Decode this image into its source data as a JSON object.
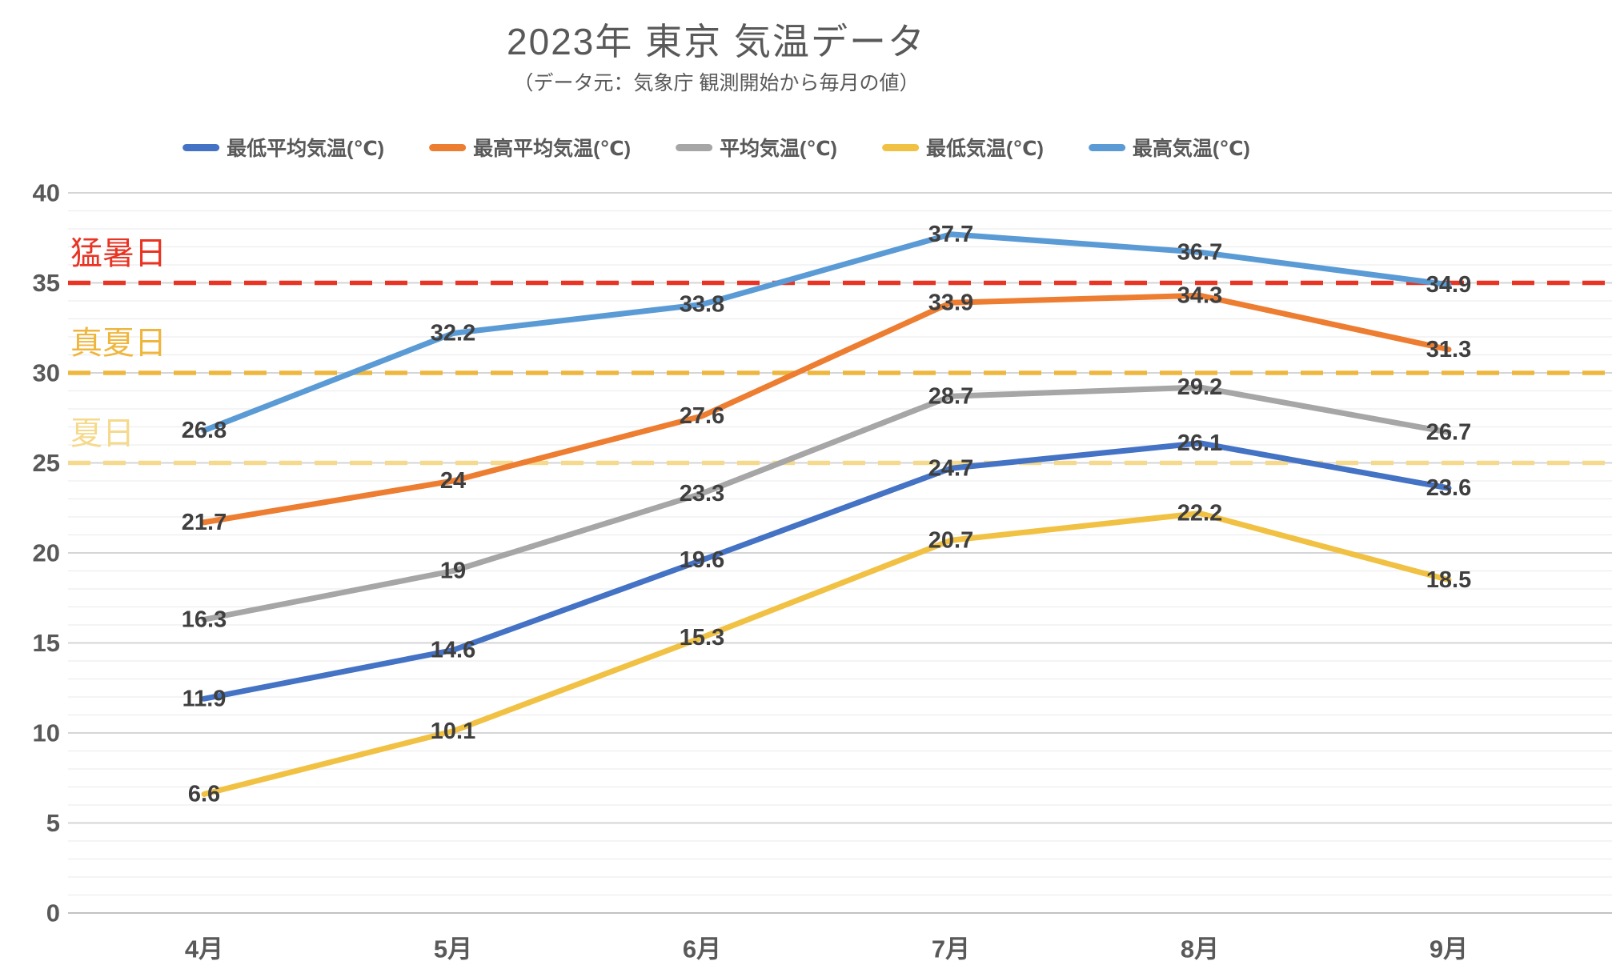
{
  "header": {
    "title": "2023年 東京 気温データ",
    "subtitle": "（データ元：気象庁 観測開始から毎月の値）"
  },
  "chart_data": {
    "type": "line",
    "title": "2023年 東京 気温データ",
    "subtitle": "（データ元：気象庁 観測開始から毎月の値）",
    "categories": [
      "4月",
      "5月",
      "6月",
      "7月",
      "8月",
      "9月"
    ],
    "series": [
      {
        "name": "最低平均気温(℃)",
        "color": "#4472C4",
        "values": [
          11.9,
          14.6,
          19.6,
          24.7,
          26.1,
          23.6
        ]
      },
      {
        "name": "最高平均気温(℃)",
        "color": "#ED7D31",
        "values": [
          21.7,
          24,
          27.6,
          33.9,
          34.3,
          31.3
        ]
      },
      {
        "name": "平均気温(℃)",
        "color": "#A6A6A6",
        "values": [
          16.3,
          19,
          23.3,
          28.7,
          29.2,
          26.7
        ]
      },
      {
        "name": "最低気温(℃)",
        "color": "#F1C144",
        "values": [
          6.6,
          10.1,
          15.3,
          20.7,
          22.2,
          18.5
        ]
      },
      {
        "name": "最高気温(℃)",
        "color": "#5B9BD5",
        "values": [
          26.8,
          32.2,
          33.8,
          37.7,
          36.7,
          34.9
        ]
      }
    ],
    "y_axis": {
      "min": 0,
      "max": 40,
      "major_step": 5,
      "minor_step": 1,
      "tick_labels": [
        "0",
        "5",
        "10",
        "15",
        "20",
        "25",
        "30",
        "35",
        "40"
      ]
    },
    "reference_lines": [
      {
        "label": "猛暑日",
        "value": 35,
        "color": "#E93323"
      },
      {
        "label": "真夏日",
        "value": 30,
        "color": "#EFB63E"
      },
      {
        "label": "夏日",
        "value": 25,
        "color": "#F5D98C"
      }
    ],
    "grid": true,
    "legend_position": "top",
    "data_labels": true,
    "colors": {
      "axis_text": "#595959",
      "data_label_text": "#3F3F3F",
      "grid_minor": "#EDEDED",
      "grid_major": "#D5D5D5",
      "grid_zero": "#C2C2C2"
    }
  }
}
